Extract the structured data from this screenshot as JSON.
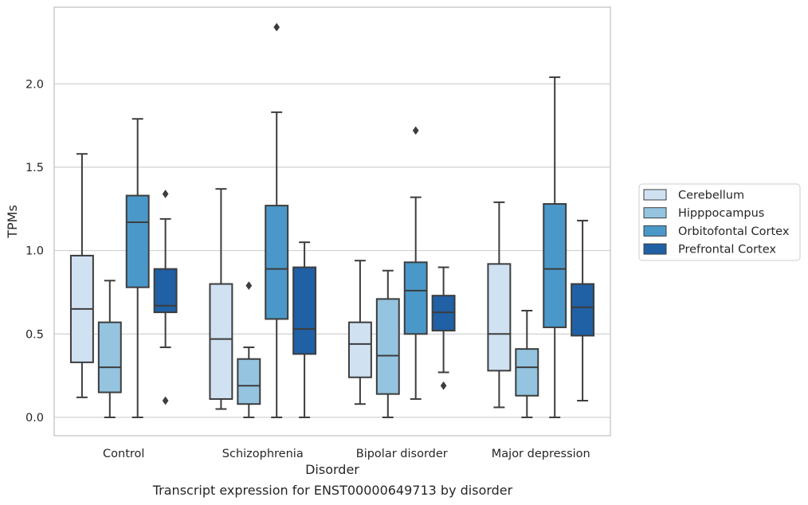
{
  "caption": "Transcript expression for ENST00000649713 by disorder",
  "chart_data": {
    "type": "boxplot",
    "xlabel": "Disorder",
    "ylabel": "TPMs",
    "categories": [
      "Control",
      "Schizophrenia",
      "Bipolar disorder",
      "Major depression"
    ],
    "ylim": [
      -0.11,
      2.46
    ],
    "yticks": [
      0.0,
      0.5,
      1.0,
      1.5,
      2.0
    ],
    "ytick_labels": [
      "0.0",
      "0.5",
      "1.0",
      "1.5",
      "2.0"
    ],
    "grid": "horizontal",
    "legend_position": "right",
    "series": [
      {
        "name": "Cerebellum",
        "color": "#d0e1f2",
        "boxes": [
          {
            "whisker_low": 0.12,
            "q1": 0.33,
            "median": 0.65,
            "q3": 0.97,
            "whisker_high": 1.58,
            "outliers": []
          },
          {
            "whisker_low": 0.05,
            "q1": 0.11,
            "median": 0.47,
            "q3": 0.8,
            "whisker_high": 1.37,
            "outliers": []
          },
          {
            "whisker_low": 0.08,
            "q1": 0.24,
            "median": 0.44,
            "q3": 0.57,
            "whisker_high": 0.94,
            "outliers": []
          },
          {
            "whisker_low": 0.06,
            "q1": 0.28,
            "median": 0.5,
            "q3": 0.92,
            "whisker_high": 1.29,
            "outliers": []
          }
        ]
      },
      {
        "name": "Hipppocampus",
        "color": "#94c4df",
        "boxes": [
          {
            "whisker_low": 0.0,
            "q1": 0.15,
            "median": 0.3,
            "q3": 0.57,
            "whisker_high": 0.82,
            "outliers": []
          },
          {
            "whisker_low": 0.0,
            "q1": 0.08,
            "median": 0.19,
            "q3": 0.35,
            "whisker_high": 0.42,
            "outliers": [
              0.79
            ]
          },
          {
            "whisker_low": 0.0,
            "q1": 0.14,
            "median": 0.37,
            "q3": 0.71,
            "whisker_high": 0.88,
            "outliers": []
          },
          {
            "whisker_low": 0.0,
            "q1": 0.13,
            "median": 0.3,
            "q3": 0.41,
            "whisker_high": 0.64,
            "outliers": []
          }
        ]
      },
      {
        "name": "Orbitofontal Cortex",
        "color": "#4a98c9",
        "boxes": [
          {
            "whisker_low": 0.0,
            "q1": 0.78,
            "median": 1.17,
            "q3": 1.33,
            "whisker_high": 1.79,
            "outliers": []
          },
          {
            "whisker_low": 0.0,
            "q1": 0.59,
            "median": 0.89,
            "q3": 1.27,
            "whisker_high": 1.83,
            "outliers": [
              2.34
            ]
          },
          {
            "whisker_low": 0.11,
            "q1": 0.5,
            "median": 0.76,
            "q3": 0.93,
            "whisker_high": 1.32,
            "outliers": [
              1.72
            ]
          },
          {
            "whisker_low": 0.0,
            "q1": 0.54,
            "median": 0.89,
            "q3": 1.28,
            "whisker_high": 2.04,
            "outliers": []
          }
        ]
      },
      {
        "name": "Prefrontal Cortex",
        "color": "#2060a5",
        "boxes": [
          {
            "whisker_low": 0.42,
            "q1": 0.63,
            "median": 0.67,
            "q3": 0.89,
            "whisker_high": 1.19,
            "outliers": [
              1.34,
              0.1
            ]
          },
          {
            "whisker_low": 0.0,
            "q1": 0.38,
            "median": 0.53,
            "q3": 0.9,
            "whisker_high": 1.05,
            "outliers": []
          },
          {
            "whisker_low": 0.27,
            "q1": 0.52,
            "median": 0.63,
            "q3": 0.73,
            "whisker_high": 0.9,
            "outliers": [
              0.19
            ]
          },
          {
            "whisker_low": 0.1,
            "q1": 0.49,
            "median": 0.66,
            "q3": 0.8,
            "whisker_high": 1.18,
            "outliers": []
          }
        ]
      }
    ]
  }
}
